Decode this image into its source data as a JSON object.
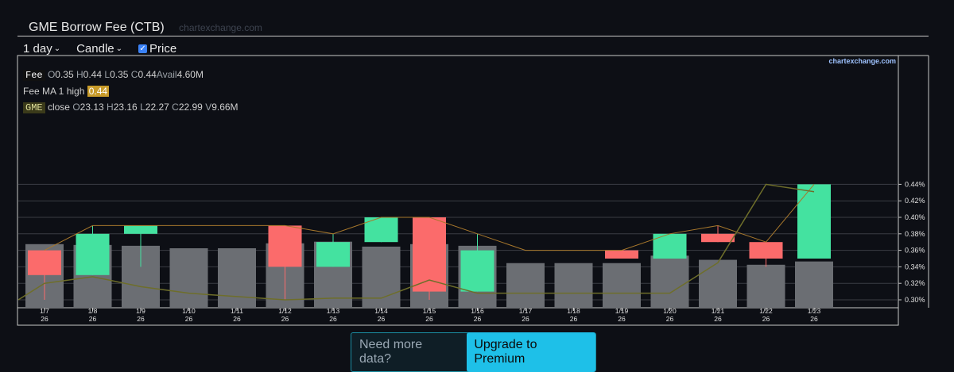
{
  "header": {
    "title": "GME Borrow Fee (CTB)",
    "watermark": "chartexchange.com"
  },
  "toolbar": {
    "period": "1 day",
    "chart_style": "Candle",
    "price_label": "Price",
    "price_checked": true
  },
  "legend": {
    "fee": {
      "tag": "Fee",
      "o_key": "O",
      "o": "0.35",
      "h_key": "H",
      "h": "0.44",
      "l_key": "L",
      "l": "0.35",
      "c_key": "C",
      "c": "0.44",
      "avail_key": "Avail",
      "avail": "4.60M"
    },
    "ma": {
      "label": "Fee MA 1 high",
      "value": "0.44"
    },
    "gme": {
      "tag": "GME",
      "label": "close",
      "o_key": "O",
      "o": "23.13",
      "h_key": "H",
      "h": "23.16",
      "l_key": "L",
      "l": "22.27",
      "c_key": "C",
      "c": "22.99",
      "v_key": "V",
      "v": "9.66M"
    }
  },
  "promo": {
    "question": "Need more data?",
    "button": "Upgrade to Premium"
  },
  "colors": {
    "up": "#44e2a0",
    "down": "#fb6b6b",
    "volume": "#6b6e73",
    "ma_line": "#a8782c",
    "price_line": "#6e6e2a"
  },
  "chart_data": {
    "type": "candlestick",
    "brand": "chartexchange.com",
    "x_labels": [
      "1/7",
      "1/8",
      "1/9",
      "1/10",
      "1/11",
      "1/12",
      "1/13",
      "1/14",
      "1/15",
      "1/16",
      "1/17",
      "1/18",
      "1/19",
      "1/20",
      "1/21",
      "1/22",
      "1/23"
    ],
    "x_sublabel": "26",
    "y_ticks": [
      "0.30%",
      "0.32%",
      "0.34%",
      "0.36%",
      "0.38%",
      "0.40%",
      "0.42%",
      "0.44%"
    ],
    "ylim": [
      0.3,
      0.44
    ],
    "fee_ohlc": [
      {
        "o": 0.36,
        "h": 0.36,
        "l": 0.3,
        "c": 0.33
      },
      {
        "o": 0.33,
        "h": 0.39,
        "l": 0.33,
        "c": 0.38
      },
      {
        "o": 0.38,
        "h": 0.39,
        "l": 0.34,
        "c": 0.39
      },
      null,
      null,
      {
        "o": 0.39,
        "h": 0.39,
        "l": 0.3,
        "c": 0.34
      },
      {
        "o": 0.34,
        "h": 0.38,
        "l": 0.34,
        "c": 0.37
      },
      {
        "o": 0.37,
        "h": 0.4,
        "l": 0.37,
        "c": 0.4
      },
      {
        "o": 0.4,
        "h": 0.4,
        "l": 0.3,
        "c": 0.31
      },
      {
        "o": 0.31,
        "h": 0.38,
        "l": 0.31,
        "c": 0.36
      },
      null,
      null,
      {
        "o": 0.36,
        "h": 0.36,
        "l": 0.35,
        "c": 0.35
      },
      {
        "o": 0.35,
        "h": 0.38,
        "l": 0.35,
        "c": 0.38
      },
      {
        "o": 0.38,
        "h": 0.39,
        "l": 0.37,
        "c": 0.37
      },
      {
        "o": 0.37,
        "h": 0.37,
        "l": 0.34,
        "c": 0.35
      },
      {
        "o": 0.35,
        "h": 0.44,
        "l": 0.35,
        "c": 0.44
      }
    ],
    "fee_ma_high": [
      0.36,
      0.39,
      0.39,
      0.39,
      0.39,
      0.39,
      0.38,
      0.4,
      0.4,
      0.38,
      0.36,
      0.36,
      0.36,
      0.38,
      0.39,
      0.37,
      0.44
    ],
    "avail_volume": [
      0.3675,
      0.3665,
      0.3655,
      0.3625,
      0.3625,
      0.3685,
      0.3705,
      0.3645,
      0.3675,
      0.3655,
      0.3445,
      0.3445,
      0.3445,
      0.3535,
      0.3485,
      0.3425,
      0.3465
    ],
    "gme_close": [
      0.32,
      0.328,
      0.316,
      0.308,
      null,
      0.3,
      0.302,
      0.302,
      0.324,
      0.308,
      0.308,
      0.308,
      0.308,
      0.308,
      0.345,
      0.44,
      0.431
    ]
  }
}
